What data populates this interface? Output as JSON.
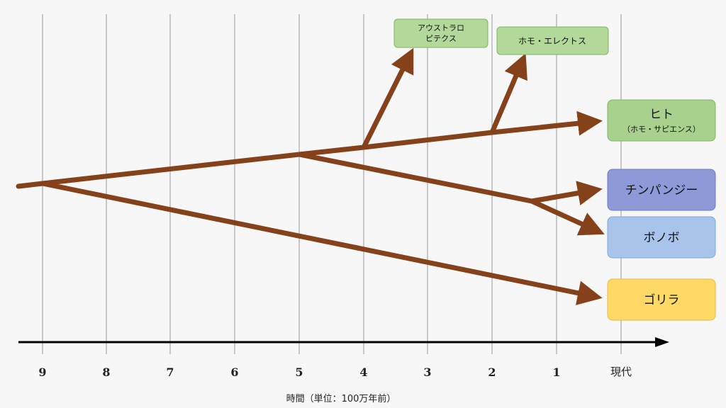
{
  "axis": {
    "ticks": [
      "9",
      "8",
      "7",
      "6",
      "5",
      "4",
      "3",
      "2",
      "1"
    ],
    "present_label": "現代",
    "title": "時間（単位：100万年前）"
  },
  "species": {
    "human": {
      "name": "ヒト",
      "sub": "（ホモ・サピエンス）",
      "fill": "#a9d18e",
      "stroke": "#82b366"
    },
    "chimp": {
      "name": "チンパンジー",
      "fill": "#8e9ad8",
      "stroke": "#6c7bc4"
    },
    "bonobo": {
      "name": "ボノボ",
      "fill": "#a9c4eb",
      "stroke": "#7ea6e0"
    },
    "gorilla": {
      "name": "ゴリラ",
      "fill": "#ffd966",
      "stroke": "#e6b84d"
    }
  },
  "extinct": {
    "australopithecus": {
      "lines": [
        "アウストラロ",
        "ピテクス"
      ],
      "fill": "#b2d89a",
      "stroke": "#82b366"
    },
    "homo_erectus": {
      "name": "ホモ・エレクトス",
      "fill": "#b2d89a",
      "stroke": "#82b366"
    }
  },
  "colors": {
    "branch": "#84411a",
    "grid": "#9a9a9a",
    "axis": "#000000"
  }
}
